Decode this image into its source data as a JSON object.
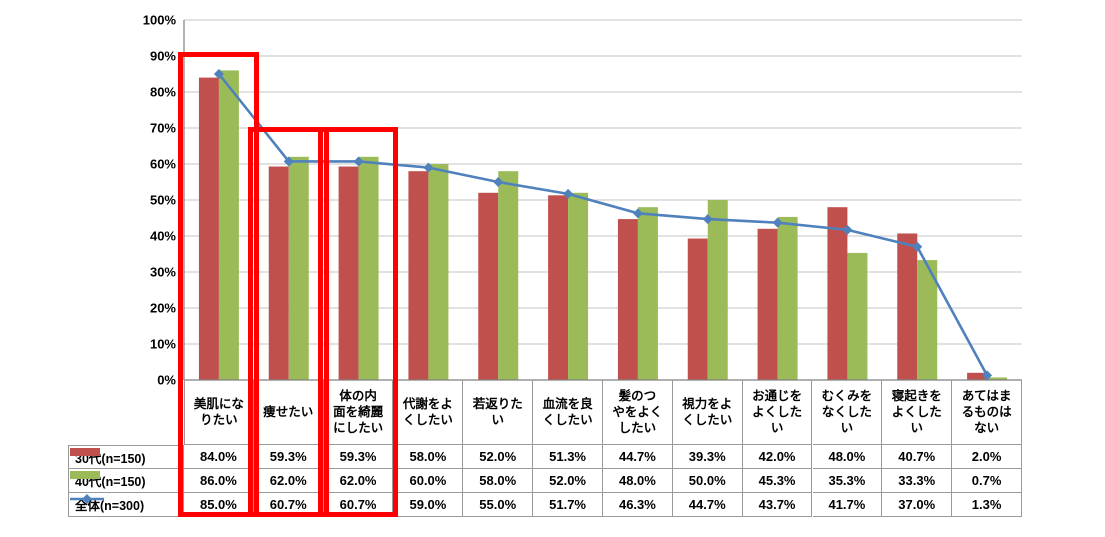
{
  "chart_data": {
    "type": "bar+line",
    "title": "",
    "categories": [
      "美肌になりたい",
      "痩せたい",
      "体の内面を綺麗にしたい",
      "代謝をよくしたい",
      "若返りたい",
      "血流を良くしたい",
      "髪のつやをよくしたい",
      "視力をよくしたい",
      "お通じをよくしたい",
      "むくみをなくしたい",
      "寝起きをよくしたい",
      "あてはまるものはない"
    ],
    "categories_display": [
      "美肌にな\nりたい",
      "痩せたい",
      "体の内\n面を綺麗\nにしたい",
      "代謝をよ\nくしたい",
      "若返りた\nい",
      "血流を良\nくしたい",
      "髪のつ\nやをよく\nしたい",
      "視力をよ\nくしたい",
      "お通じを\nよくした\nい",
      "むくみを\nなくした\nい",
      "寝起きを\nよくした\nい",
      "あてはま\nるものは\nない"
    ],
    "series": [
      {
        "name": "30代(n=150)",
        "type": "bar",
        "color": "#C0504D",
        "values": [
          84.0,
          59.3,
          59.3,
          58.0,
          52.0,
          51.3,
          44.7,
          39.3,
          42.0,
          48.0,
          40.7,
          2.0
        ]
      },
      {
        "name": "40代(n=150)",
        "type": "bar",
        "color": "#9BBB59",
        "values": [
          86.0,
          62.0,
          62.0,
          60.0,
          58.0,
          52.0,
          48.0,
          50.0,
          45.3,
          35.3,
          33.3,
          0.7
        ]
      },
      {
        "name": "全体(n=300)",
        "type": "line",
        "color": "#4F81BD",
        "values": [
          85.0,
          60.7,
          60.7,
          59.0,
          55.0,
          51.7,
          46.3,
          44.7,
          43.7,
          41.7,
          37.0,
          1.3
        ]
      }
    ],
    "ylim": [
      0,
      100
    ],
    "ytick_step": 10,
    "ytick_labels": [
      "0%",
      "10%",
      "20%",
      "30%",
      "40%",
      "50%",
      "60%",
      "70%",
      "80%",
      "90%",
      "100%"
    ],
    "grid": true,
    "legend_position": "table-left",
    "value_format": "0.0%",
    "highlighted_categories": [
      0,
      1,
      2
    ],
    "highlight_color": "#FF0000"
  },
  "colors": {
    "grid_line": "#C6C6C6",
    "axis_line": "#808080",
    "table_border": "#9A9A9A",
    "background": "#FFFFFF"
  }
}
